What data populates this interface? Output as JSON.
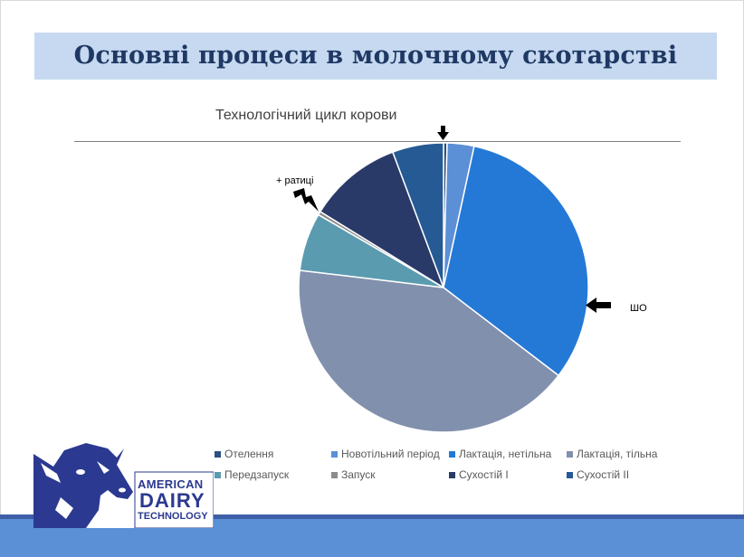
{
  "slide": {
    "title": "Основні процеси в молочному скотарстві"
  },
  "annotations": {
    "hooves": "+ ратиці",
    "sho": "ШО"
  },
  "logo": {
    "line1": "AMERICAN",
    "line2": "DAIRY",
    "line3": "TECHNOLOGY"
  },
  "chart_data": {
    "type": "pie",
    "title": "Технологічний цикл корови",
    "unit": "%",
    "legend_position": "bottom",
    "slices": [
      {
        "label": "Отелення",
        "value": 0.4,
        "color": "#2b4f7e"
      },
      {
        "label": "Новотільний період",
        "value": 3,
        "color": "#5b8fd6"
      },
      {
        "label": "Лактація, нетільна",
        "value": 32,
        "color": "#2479d6"
      },
      {
        "label": "Лактація, тільна",
        "value": 41.5,
        "color": "#8190ad"
      },
      {
        "label": "Передзапуск",
        "value": 6.5,
        "color": "#5a9bb0"
      },
      {
        "label": "Запуск",
        "value": 0.4,
        "color": "#8c8c8c"
      },
      {
        "label": "Сухостій I",
        "value": 10.5,
        "color": "#2a3a68"
      },
      {
        "label": "Сухостій II",
        "value": 5.7,
        "color": "#255a94"
      }
    ]
  }
}
